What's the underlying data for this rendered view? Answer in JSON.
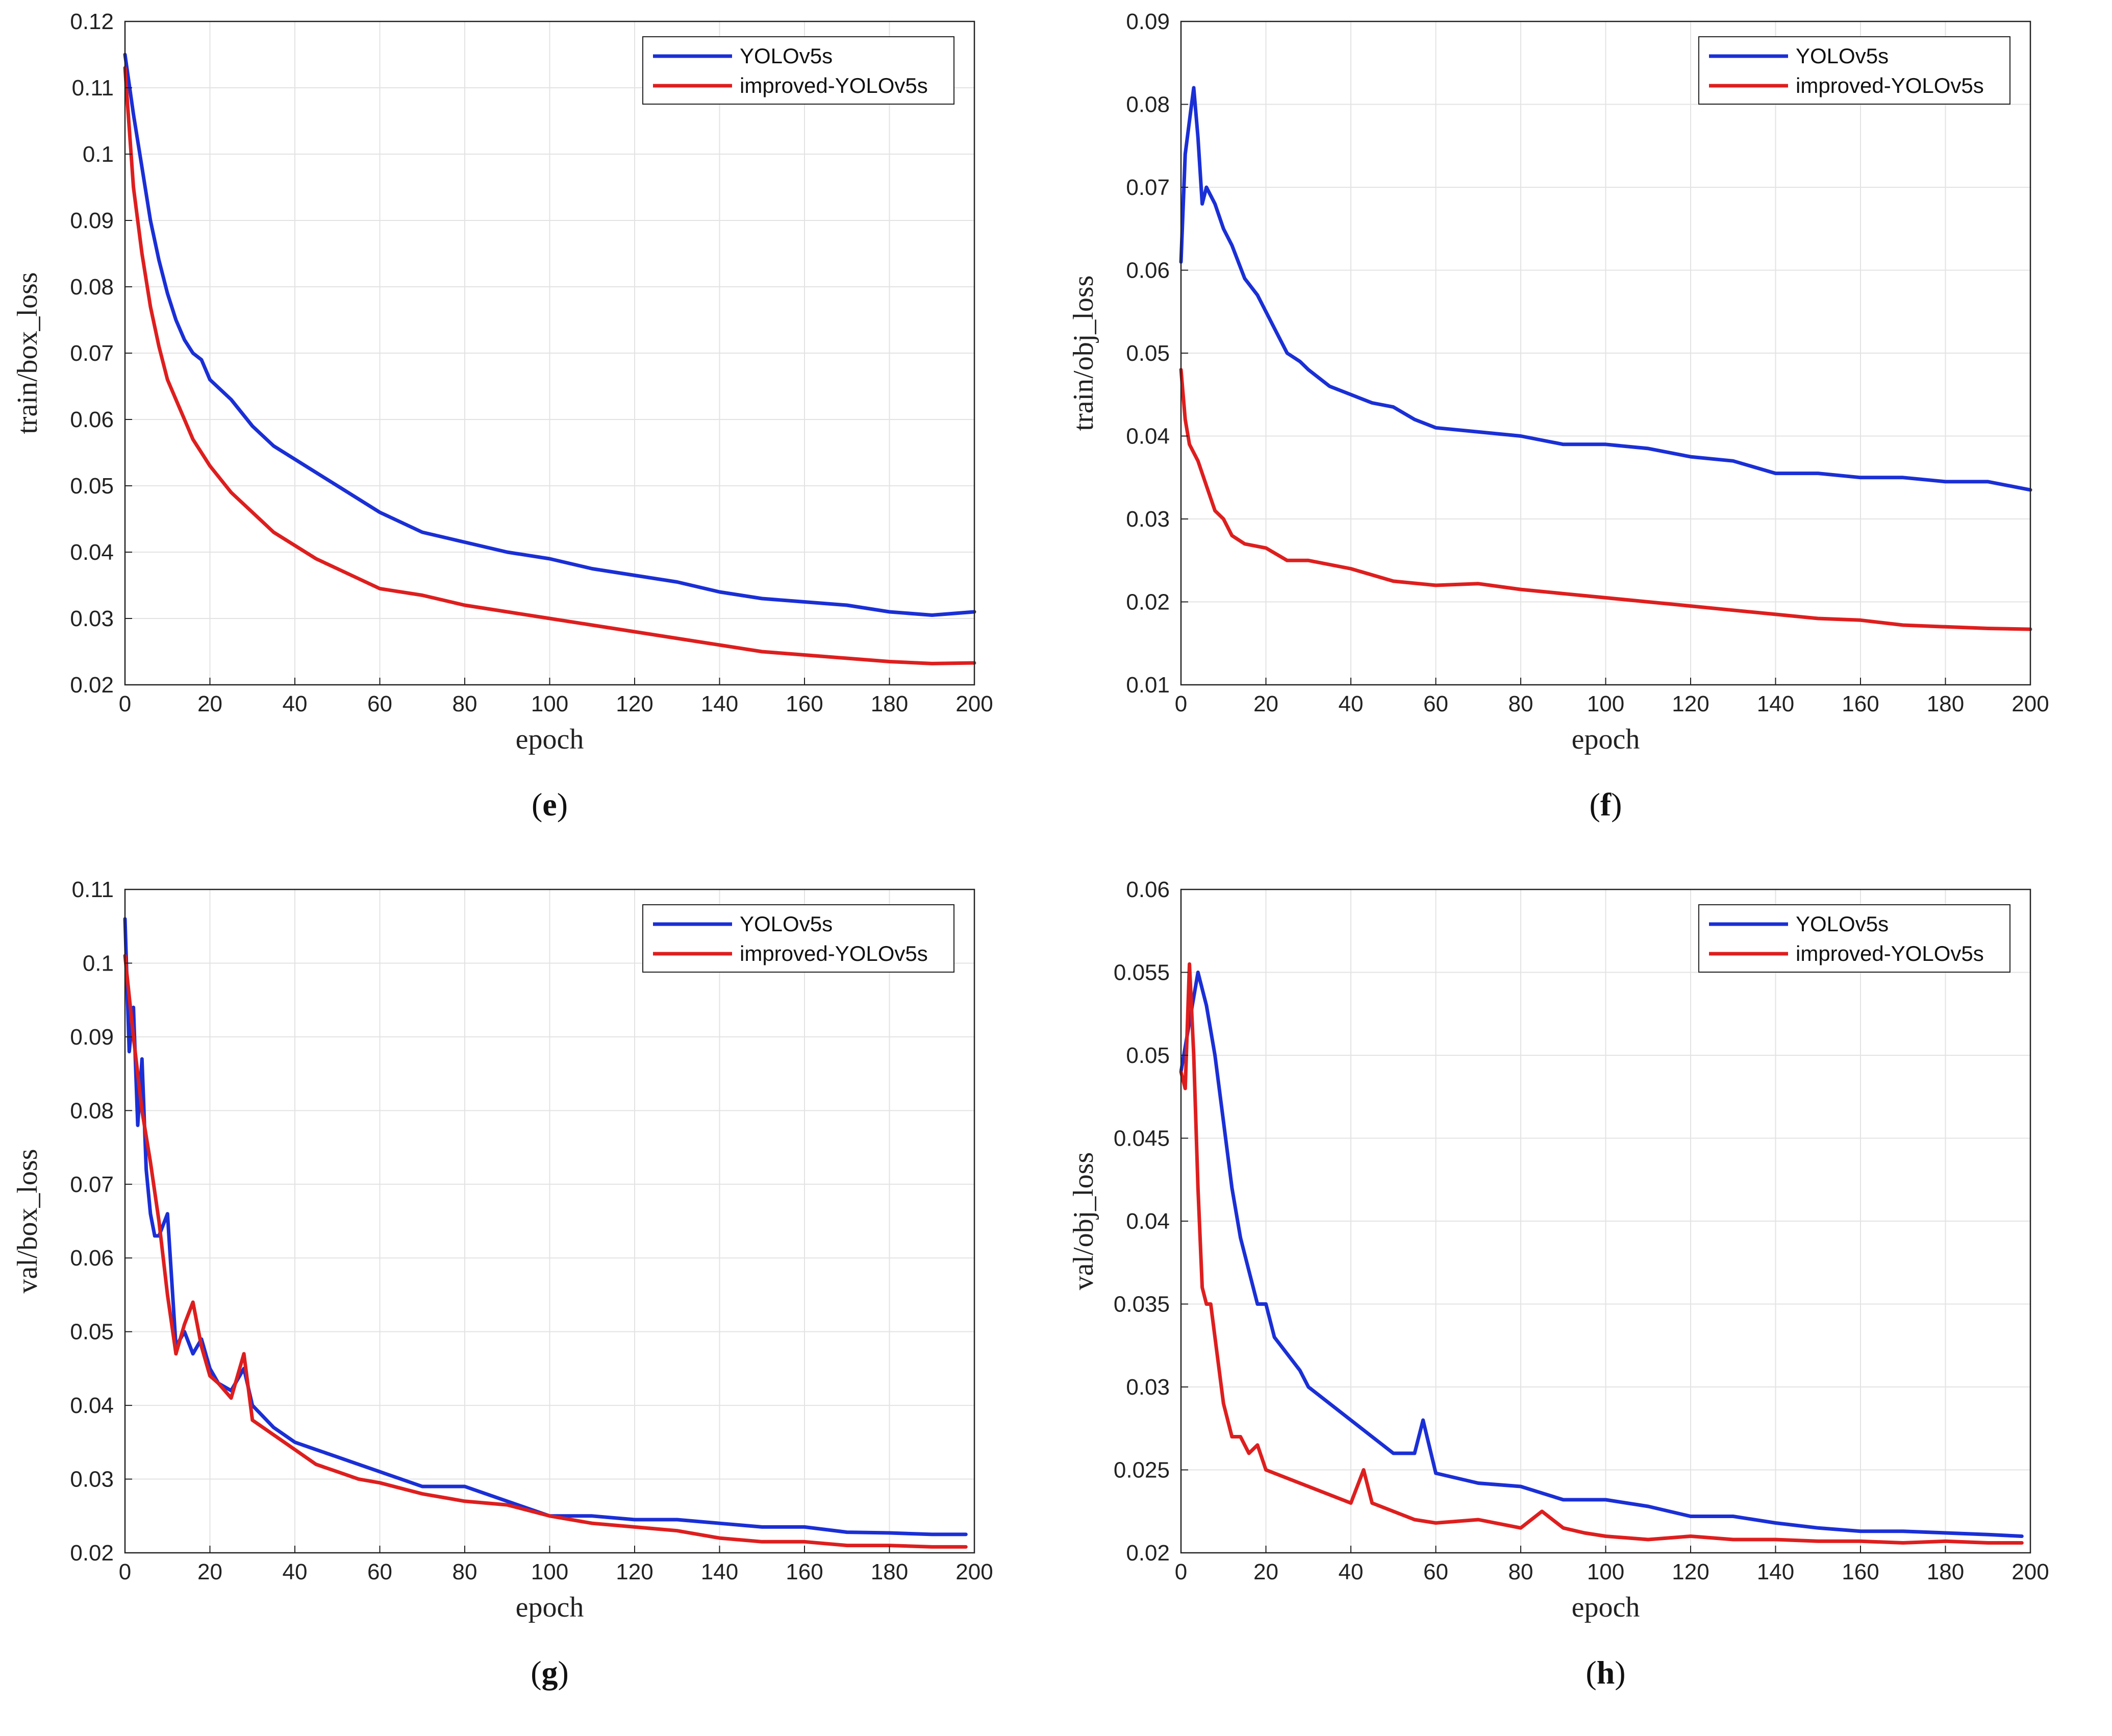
{
  "chart_data": [
    {
      "panel": "e",
      "type": "line",
      "caption": "e",
      "xlabel": "epoch",
      "ylabel": "train/box_loss",
      "xlim": [
        0,
        200
      ],
      "ylim": [
        0.02,
        0.12
      ],
      "xticks": [
        0,
        20,
        40,
        60,
        80,
        100,
        120,
        140,
        160,
        180,
        200
      ],
      "yticks": [
        0.02,
        0.03,
        0.04,
        0.05,
        0.06,
        0.07,
        0.08,
        0.09,
        0.1,
        0.11,
        0.12
      ],
      "grid": true,
      "legend": "top-right",
      "series": [
        {
          "name": "YOLOv5s",
          "color": "#1a2fd6",
          "x": [
            0,
            2,
            4,
            6,
            8,
            10,
            12,
            14,
            16,
            18,
            20,
            25,
            30,
            35,
            40,
            45,
            50,
            55,
            60,
            70,
            80,
            90,
            100,
            110,
            120,
            130,
            140,
            150,
            160,
            170,
            180,
            190,
            200
          ],
          "y": [
            0.115,
            0.106,
            0.098,
            0.09,
            0.084,
            0.079,
            0.075,
            0.072,
            0.07,
            0.069,
            0.066,
            0.063,
            0.059,
            0.056,
            0.054,
            0.052,
            0.05,
            0.048,
            0.046,
            0.043,
            0.0415,
            0.04,
            0.039,
            0.0375,
            0.0365,
            0.0355,
            0.034,
            0.033,
            0.0325,
            0.032,
            0.031,
            0.0305,
            0.031
          ]
        },
        {
          "name": "improved-YOLOv5s",
          "color": "#de1e1e",
          "x": [
            0,
            2,
            4,
            6,
            8,
            10,
            12,
            14,
            16,
            18,
            20,
            25,
            30,
            35,
            40,
            45,
            50,
            55,
            60,
            70,
            80,
            90,
            100,
            110,
            120,
            130,
            140,
            150,
            160,
            170,
            180,
            190,
            200
          ],
          "y": [
            0.113,
            0.095,
            0.085,
            0.077,
            0.071,
            0.066,
            0.063,
            0.06,
            0.057,
            0.055,
            0.053,
            0.049,
            0.046,
            0.043,
            0.041,
            0.039,
            0.0375,
            0.036,
            0.0345,
            0.0335,
            0.032,
            0.031,
            0.03,
            0.029,
            0.028,
            0.027,
            0.026,
            0.025,
            0.0245,
            0.024,
            0.0235,
            0.0232,
            0.0233
          ]
        }
      ]
    },
    {
      "panel": "f",
      "type": "line",
      "caption": "f",
      "xlabel": "epoch",
      "ylabel": "train/obj_loss",
      "xlim": [
        0,
        200
      ],
      "ylim": [
        0.01,
        0.09
      ],
      "xticks": [
        0,
        20,
        40,
        60,
        80,
        100,
        120,
        140,
        160,
        180,
        200
      ],
      "yticks": [
        0.01,
        0.02,
        0.03,
        0.04,
        0.05,
        0.06,
        0.07,
        0.08,
        0.09
      ],
      "grid": true,
      "legend": "top-right",
      "series": [
        {
          "name": "YOLOv5s",
          "color": "#1a2fd6",
          "x": [
            0,
            1,
            2,
            3,
            4,
            5,
            6,
            8,
            10,
            12,
            15,
            18,
            20,
            22,
            25,
            28,
            30,
            35,
            40,
            45,
            50,
            55,
            60,
            70,
            80,
            90,
            100,
            110,
            120,
            130,
            140,
            150,
            160,
            170,
            180,
            190,
            200
          ],
          "y": [
            0.061,
            0.074,
            0.078,
            0.082,
            0.076,
            0.068,
            0.07,
            0.068,
            0.065,
            0.063,
            0.059,
            0.057,
            0.055,
            0.053,
            0.05,
            0.049,
            0.048,
            0.046,
            0.045,
            0.044,
            0.0435,
            0.042,
            0.041,
            0.0405,
            0.04,
            0.039,
            0.039,
            0.0385,
            0.0375,
            0.037,
            0.0355,
            0.0355,
            0.035,
            0.035,
            0.0345,
            0.0345,
            0.0335
          ]
        },
        {
          "name": "improved-YOLOv5s",
          "color": "#de1e1e",
          "x": [
            0,
            1,
            2,
            4,
            6,
            8,
            10,
            12,
            15,
            20,
            25,
            30,
            40,
            50,
            60,
            70,
            80,
            90,
            100,
            110,
            120,
            130,
            140,
            150,
            160,
            170,
            180,
            190,
            200
          ],
          "y": [
            0.048,
            0.042,
            0.039,
            0.037,
            0.034,
            0.031,
            0.03,
            0.028,
            0.027,
            0.0265,
            0.025,
            0.025,
            0.024,
            0.0225,
            0.022,
            0.0222,
            0.0215,
            0.021,
            0.0205,
            0.02,
            0.0195,
            0.019,
            0.0185,
            0.018,
            0.0178,
            0.0172,
            0.017,
            0.0168,
            0.0167
          ]
        }
      ]
    },
    {
      "panel": "g",
      "type": "line",
      "caption": "g",
      "xlabel": "epoch",
      "ylabel": "val/box_loss",
      "xlim": [
        0,
        200
      ],
      "ylim": [
        0.02,
        0.11
      ],
      "xticks": [
        0,
        20,
        40,
        60,
        80,
        100,
        120,
        140,
        160,
        180,
        200
      ],
      "yticks": [
        0.02,
        0.03,
        0.04,
        0.05,
        0.06,
        0.07,
        0.08,
        0.09,
        0.1,
        0.11
      ],
      "grid": true,
      "legend": "top-right",
      "series": [
        {
          "name": "YOLOv5s",
          "color": "#1a2fd6",
          "x": [
            0,
            1,
            2,
            3,
            4,
            5,
            6,
            7,
            8,
            10,
            12,
            14,
            16,
            18,
            20,
            22,
            25,
            28,
            30,
            35,
            40,
            45,
            50,
            55,
            60,
            70,
            80,
            90,
            100,
            110,
            120,
            130,
            140,
            150,
            160,
            170,
            180,
            190,
            198
          ],
          "y": [
            0.106,
            0.088,
            0.094,
            0.078,
            0.087,
            0.072,
            0.066,
            0.063,
            0.063,
            0.066,
            0.048,
            0.05,
            0.047,
            0.049,
            0.045,
            0.043,
            0.042,
            0.045,
            0.04,
            0.037,
            0.035,
            0.034,
            0.033,
            0.032,
            0.031,
            0.029,
            0.029,
            0.027,
            0.025,
            0.025,
            0.0245,
            0.0245,
            0.024,
            0.0235,
            0.0235,
            0.0228,
            0.0227,
            0.0225,
            0.0225
          ]
        },
        {
          "name": "improved-YOLOv5s",
          "color": "#de1e1e",
          "x": [
            0,
            2,
            4,
            6,
            8,
            10,
            12,
            14,
            16,
            18,
            20,
            22,
            25,
            28,
            30,
            35,
            40,
            45,
            50,
            55,
            60,
            70,
            80,
            90,
            100,
            110,
            120,
            130,
            140,
            150,
            160,
            170,
            180,
            190,
            198
          ],
          "y": [
            0.101,
            0.09,
            0.08,
            0.073,
            0.065,
            0.055,
            0.047,
            0.051,
            0.054,
            0.048,
            0.044,
            0.043,
            0.041,
            0.047,
            0.038,
            0.036,
            0.034,
            0.032,
            0.031,
            0.03,
            0.0295,
            0.028,
            0.027,
            0.0265,
            0.025,
            0.024,
            0.0235,
            0.023,
            0.022,
            0.0215,
            0.0215,
            0.021,
            0.021,
            0.0208,
            0.0208
          ]
        }
      ]
    },
    {
      "panel": "h",
      "type": "line",
      "caption": "h",
      "xlabel": "epoch",
      "ylabel": "val/obj_loss",
      "xlim": [
        0,
        200
      ],
      "ylim": [
        0.02,
        0.06
      ],
      "xticks": [
        0,
        20,
        40,
        60,
        80,
        100,
        120,
        140,
        160,
        180,
        200
      ],
      "yticks": [
        0.02,
        0.025,
        0.03,
        0.035,
        0.04,
        0.045,
        0.05,
        0.055,
        0.06
      ],
      "grid": true,
      "legend": "top-right",
      "series": [
        {
          "name": "YOLOv5s",
          "color": "#1a2fd6",
          "x": [
            0,
            2,
            4,
            6,
            8,
            10,
            12,
            14,
            16,
            18,
            20,
            22,
            25,
            28,
            30,
            35,
            40,
            45,
            50,
            55,
            57,
            60,
            70,
            80,
            90,
            100,
            110,
            120,
            130,
            140,
            150,
            160,
            170,
            180,
            190,
            198
          ],
          "y": [
            0.049,
            0.052,
            0.055,
            0.053,
            0.05,
            0.046,
            0.042,
            0.039,
            0.037,
            0.035,
            0.035,
            0.033,
            0.032,
            0.031,
            0.03,
            0.029,
            0.028,
            0.027,
            0.026,
            0.026,
            0.028,
            0.0248,
            0.0242,
            0.024,
            0.0232,
            0.0232,
            0.0228,
            0.0222,
            0.0222,
            0.0218,
            0.0215,
            0.0213,
            0.0213,
            0.0212,
            0.0211,
            0.021
          ]
        },
        {
          "name": "improved-YOLOv5s",
          "color": "#de1e1e",
          "x": [
            0,
            1,
            2,
            3,
            4,
            5,
            6,
            7,
            8,
            10,
            12,
            14,
            16,
            18,
            20,
            25,
            30,
            35,
            40,
            43,
            45,
            50,
            55,
            60,
            70,
            80,
            85,
            90,
            95,
            100,
            110,
            120,
            130,
            140,
            150,
            160,
            170,
            180,
            190,
            198
          ],
          "y": [
            0.049,
            0.048,
            0.0555,
            0.05,
            0.042,
            0.036,
            0.035,
            0.035,
            0.033,
            0.029,
            0.027,
            0.027,
            0.026,
            0.0265,
            0.025,
            0.0245,
            0.024,
            0.0235,
            0.023,
            0.025,
            0.023,
            0.0225,
            0.022,
            0.0218,
            0.022,
            0.0215,
            0.0225,
            0.0215,
            0.0212,
            0.021,
            0.0208,
            0.021,
            0.0208,
            0.0208,
            0.0207,
            0.0207,
            0.0206,
            0.0207,
            0.0206,
            0.0206
          ]
        }
      ]
    }
  ]
}
